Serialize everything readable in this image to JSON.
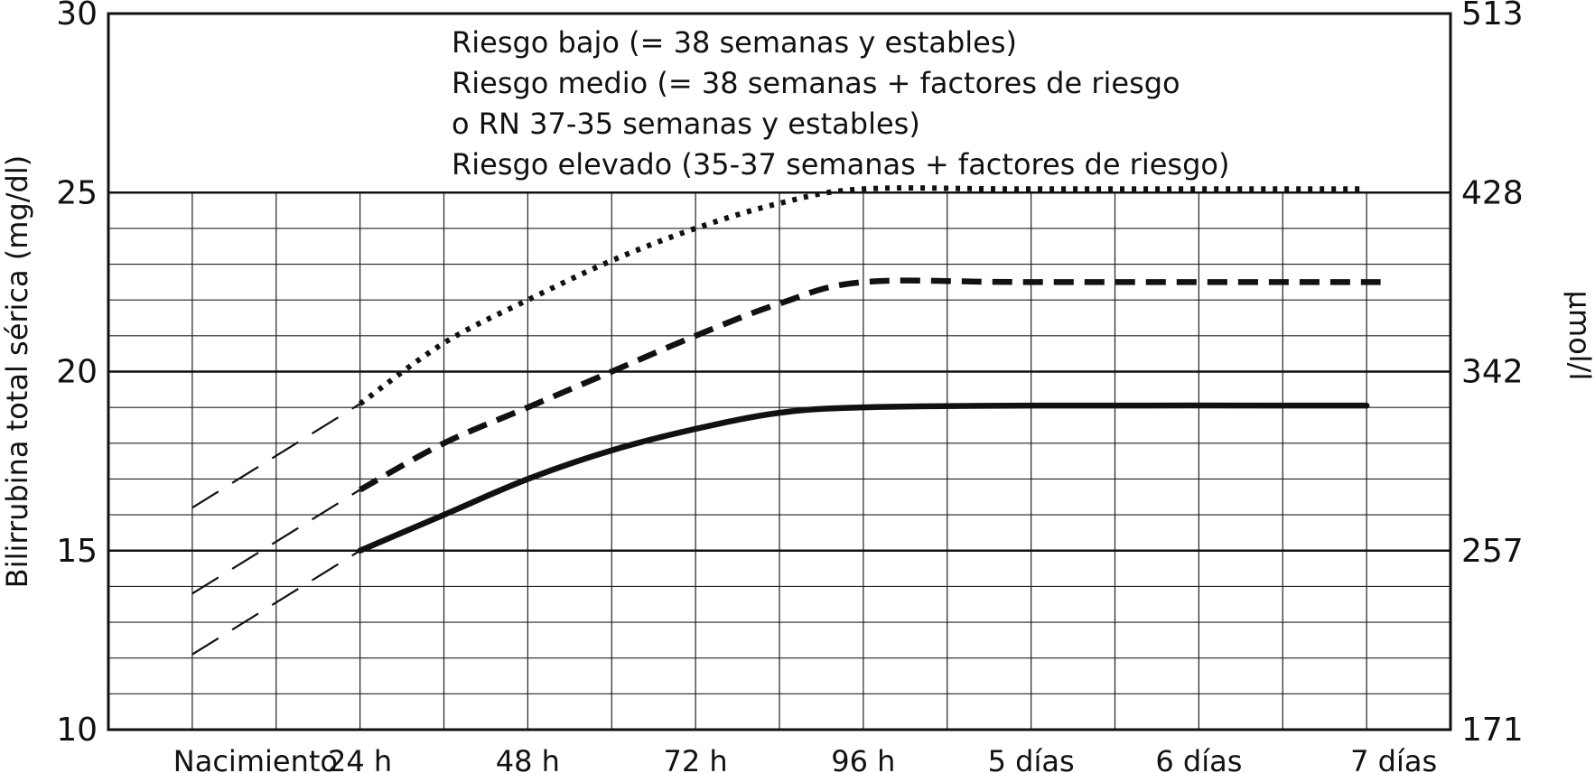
{
  "chart_data": {
    "type": "line",
    "title": "",
    "ylabel": "Bilirrubina total sérica (mg/dl)",
    "ylabel_right": "µmol/l",
    "ylim": [
      10,
      30
    ],
    "yticks": [
      "10",
      "15",
      "20",
      "25",
      "30"
    ],
    "yticks_right": [
      "171",
      "257",
      "342",
      "428",
      "513"
    ],
    "xticks": [
      {
        "x": 0,
        "label": "Nacimiento"
      },
      {
        "x": 24,
        "label": "24 h"
      },
      {
        "x": 48,
        "label": "48 h"
      },
      {
        "x": 72,
        "label": "72 h"
      },
      {
        "x": 96,
        "label": "96 h"
      },
      {
        "x": 120,
        "label": "5 días"
      },
      {
        "x": 144,
        "label": "6 días"
      },
      {
        "x": 168,
        "label": "7 días"
      }
    ],
    "xlim": [
      -12,
      180
    ],
    "x_gridlines": [
      0,
      12,
      24,
      36,
      48,
      60,
      72,
      84,
      96,
      108,
      120,
      132,
      144,
      156,
      168
    ],
    "y_major_gridlines": [
      15,
      20,
      25
    ],
    "y_minor_gridlines": [
      11,
      12,
      13,
      14,
      16,
      17,
      18,
      19,
      21,
      22,
      23,
      24
    ],
    "grid": true,
    "legend_position": "top-center",
    "legend_lines": [
      "Riesgo bajo (= 38 semanas y estables)",
      "Riesgo medio (= 38 semanas + factores de riesgo",
      "o RN 37-35 semanas y estables)",
      "Riesgo elevado (35-37 semanas + factores de riesgo)"
    ],
    "series": [
      {
        "name": "Riesgo bajo (= 38 semanas y estables)",
        "style": "solid",
        "points": [
          [
            24,
            15.0
          ],
          [
            36,
            16.0
          ],
          [
            48,
            17.0
          ],
          [
            60,
            17.8
          ],
          [
            72,
            18.4
          ],
          [
            84,
            18.85
          ],
          [
            96,
            19.0
          ],
          [
            120,
            19.05
          ],
          [
            168,
            19.05
          ]
        ],
        "extrapolation": [
          [
            0,
            12.1
          ],
          [
            24,
            15.0
          ]
        ]
      },
      {
        "name": "Riesgo medio (= 38 semanas + factores de riesgo o RN 37-35 semanas y estables)",
        "style": "dashed",
        "points": [
          [
            24,
            16.7
          ],
          [
            36,
            18.0
          ],
          [
            48,
            19.0
          ],
          [
            60,
            20.0
          ],
          [
            72,
            21.0
          ],
          [
            84,
            21.9
          ],
          [
            96,
            22.5
          ],
          [
            120,
            22.5
          ],
          [
            170,
            22.5
          ]
        ],
        "extrapolation": [
          [
            0,
            13.8
          ],
          [
            24,
            16.7
          ]
        ]
      },
      {
        "name": "Riesgo elevado (35-37 semanas + factores de riesgo)",
        "style": "dotted",
        "points": [
          [
            24,
            19.1
          ],
          [
            36,
            20.8
          ],
          [
            48,
            22.0
          ],
          [
            60,
            23.1
          ],
          [
            72,
            24.0
          ],
          [
            84,
            24.7
          ],
          [
            96,
            25.1
          ],
          [
            120,
            25.1
          ],
          [
            168,
            25.1
          ]
        ],
        "extrapolation": [
          [
            0,
            16.2
          ],
          [
            24,
            19.1
          ]
        ]
      }
    ]
  }
}
